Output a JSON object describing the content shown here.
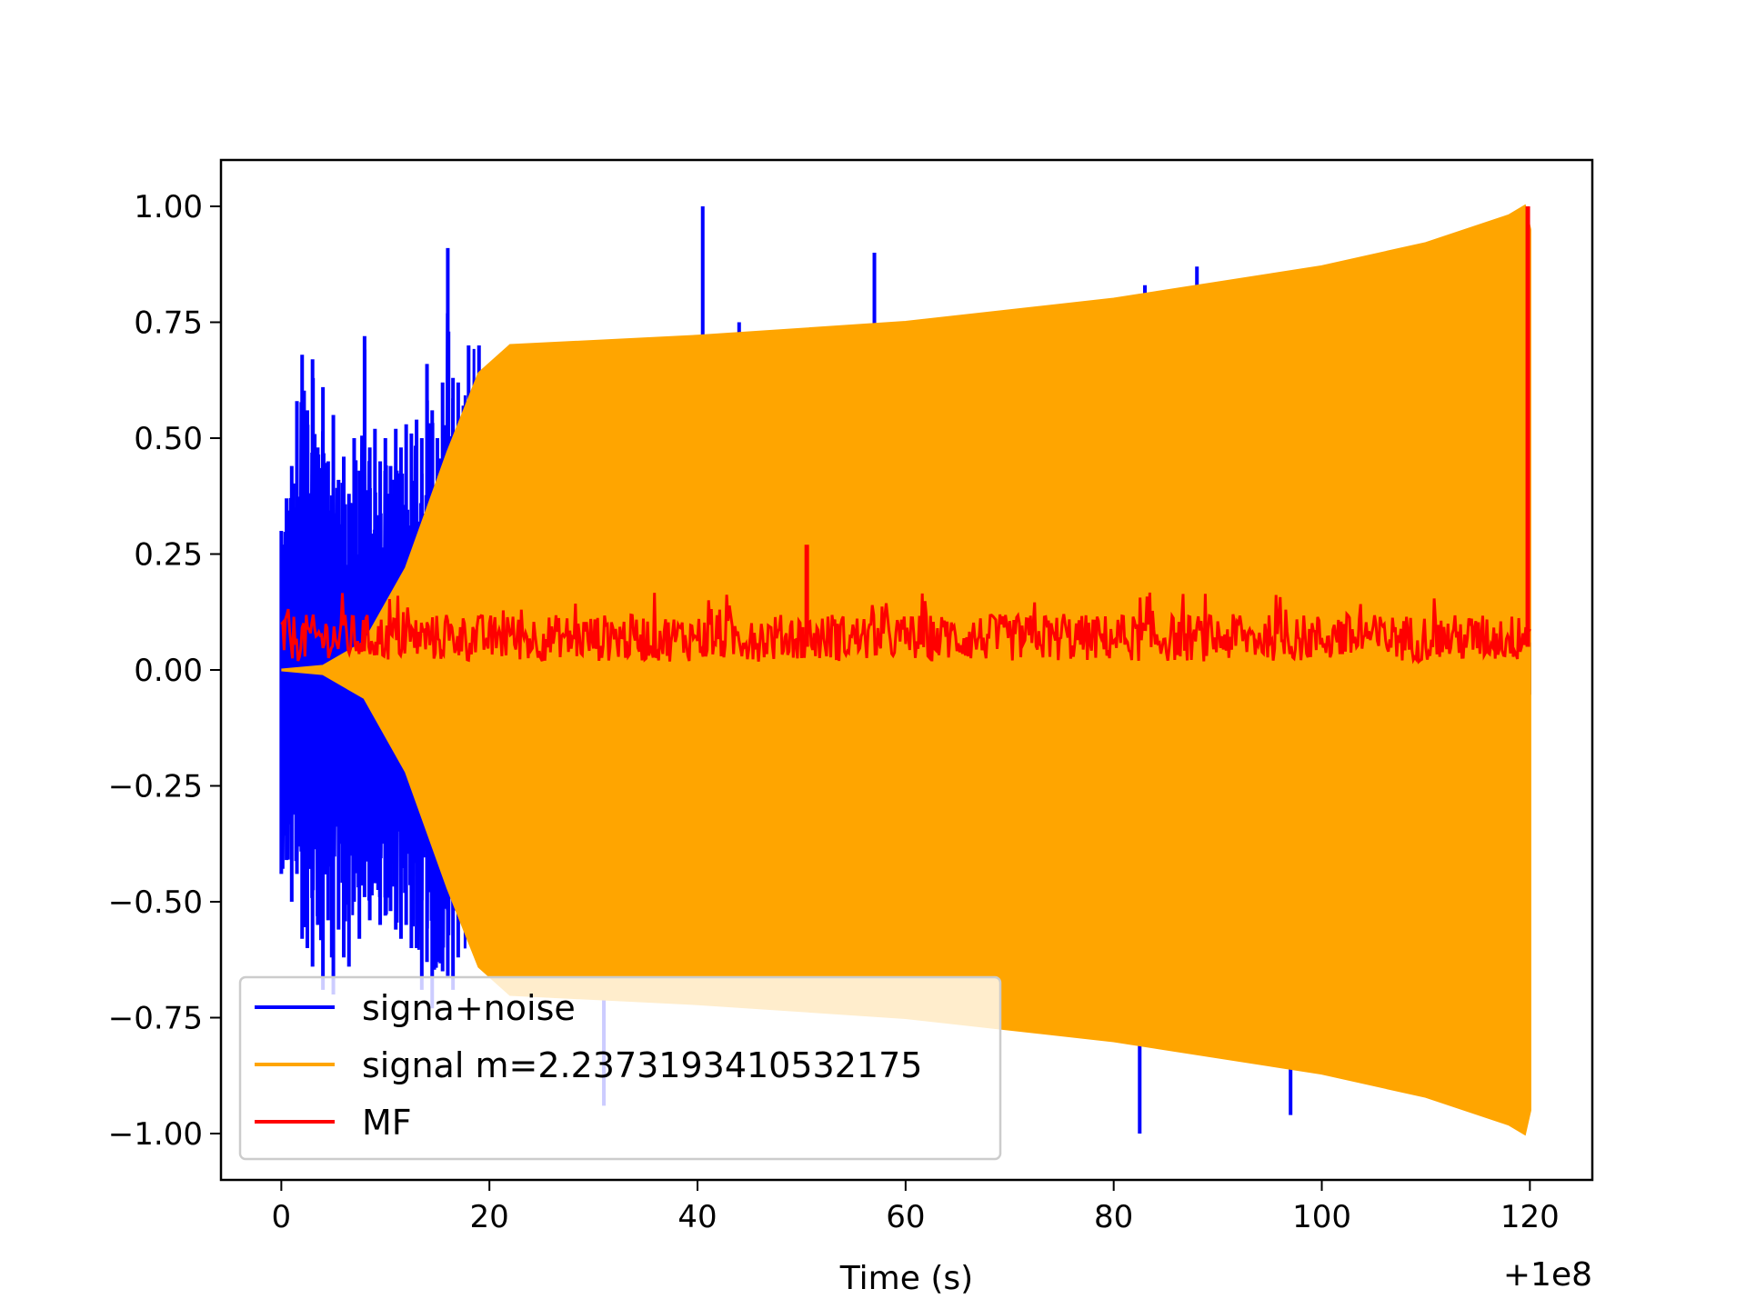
{
  "chart_data": {
    "type": "line",
    "title": "",
    "xlabel": "Time (s)",
    "ylabel": "",
    "x_offset_label": "+1e8",
    "xlim": [
      -5.8,
      126
    ],
    "ylim": [
      -1.1,
      1.1
    ],
    "xticks": [
      0,
      20,
      40,
      60,
      80,
      100,
      120
    ],
    "xtick_labels": [
      "0",
      "20",
      "40",
      "60",
      "80",
      "100",
      "120"
    ],
    "yticks": [
      1.0,
      0.75,
      0.5,
      0.25,
      0.0,
      -0.25,
      -0.5,
      -0.75,
      -1.0
    ],
    "ytick_labels": [
      "1.00",
      "0.75",
      "0.50",
      "0.25",
      "0.00",
      "−0.25",
      "−0.50",
      "−0.75",
      "−1.00"
    ],
    "grid": false,
    "legend_position": "lower-left",
    "series": [
      {
        "name": "signa+noise",
        "color": "#0000ff",
        "style": "noise-burst",
        "x_start": 0,
        "x_end": 120,
        "upper_spikes": [
          [
            0,
            0.3
          ],
          [
            0.5,
            0.37
          ],
          [
            1,
            0.44
          ],
          [
            1.5,
            0.58
          ],
          [
            2,
            0.68
          ],
          [
            2.5,
            0.56
          ],
          [
            3,
            0.67
          ],
          [
            3.5,
            0.48
          ],
          [
            4,
            0.61
          ],
          [
            4.5,
            0.45
          ],
          [
            5,
            0.55
          ],
          [
            5.5,
            0.41
          ],
          [
            6,
            0.46
          ],
          [
            6.5,
            0.38
          ],
          [
            7,
            0.5
          ],
          [
            7.5,
            0.43
          ],
          [
            8,
            0.72
          ],
          [
            8.5,
            0.48
          ],
          [
            9,
            0.52
          ],
          [
            9.5,
            0.45
          ],
          [
            10,
            0.5
          ],
          [
            10.5,
            0.44
          ],
          [
            11,
            0.52
          ],
          [
            11.5,
            0.48
          ],
          [
            12,
            0.53
          ],
          [
            12.5,
            0.51
          ],
          [
            13,
            0.54
          ],
          [
            13.5,
            0.5
          ],
          [
            14,
            0.66
          ],
          [
            14.5,
            0.56
          ],
          [
            15,
            0.5
          ],
          [
            15.5,
            0.62
          ],
          [
            16,
            0.91
          ],
          [
            16.5,
            0.63
          ],
          [
            17,
            0.62
          ],
          [
            17.5,
            0.57
          ],
          [
            18,
            0.7
          ],
          [
            19,
            0.7
          ],
          [
            40.5,
            1.0
          ],
          [
            44,
            0.75
          ],
          [
            57,
            0.9
          ],
          [
            83,
            0.83
          ],
          [
            88,
            0.87
          ]
        ],
        "lower_spikes": [
          [
            0,
            -0.44
          ],
          [
            0.5,
            -0.41
          ],
          [
            1,
            -0.5
          ],
          [
            1.5,
            -0.44
          ],
          [
            2,
            -0.58
          ],
          [
            2.5,
            -0.6
          ],
          [
            3,
            -0.64
          ],
          [
            3.5,
            -0.55
          ],
          [
            4,
            -0.69
          ],
          [
            4.5,
            -0.54
          ],
          [
            5,
            -0.7
          ],
          [
            5.5,
            -0.56
          ],
          [
            6,
            -0.62
          ],
          [
            6.5,
            -0.64
          ],
          [
            7,
            -0.5
          ],
          [
            7.5,
            -0.58
          ],
          [
            8,
            -0.49
          ],
          [
            8.5,
            -0.54
          ],
          [
            9,
            -0.46
          ],
          [
            9.5,
            -0.55
          ],
          [
            10,
            -0.53
          ],
          [
            10.5,
            -0.52
          ],
          [
            11,
            -0.56
          ],
          [
            11.5,
            -0.58
          ],
          [
            12,
            -0.55
          ],
          [
            12.5,
            -0.6
          ],
          [
            13,
            -0.6
          ],
          [
            13.5,
            -0.69
          ],
          [
            14,
            -0.63
          ],
          [
            14.5,
            -0.73
          ],
          [
            15,
            -0.63
          ],
          [
            15.5,
            -0.65
          ],
          [
            16,
            -0.66
          ],
          [
            16.5,
            -0.69
          ],
          [
            17,
            -0.62
          ],
          [
            31,
            -0.94
          ],
          [
            82.5,
            -1.0
          ],
          [
            97,
            -0.96
          ]
        ]
      },
      {
        "name": "signal m=2.2373193410532175",
        "color": "#ffa500",
        "style": "envelope",
        "envelope_upper": [
          [
            0,
            0.0
          ],
          [
            4,
            0.008
          ],
          [
            8,
            0.06
          ],
          [
            12,
            0.22
          ],
          [
            16,
            0.47
          ],
          [
            19,
            0.64
          ],
          [
            22,
            0.7
          ],
          [
            40,
            0.72
          ],
          [
            60,
            0.75
          ],
          [
            80,
            0.8
          ],
          [
            100,
            0.87
          ],
          [
            110,
            0.92
          ],
          [
            118,
            0.98
          ],
          [
            119.5,
            1.0
          ],
          [
            120,
            0.95
          ]
        ],
        "envelope_lower": [
          [
            0,
            0.0
          ],
          [
            4,
            -0.008
          ],
          [
            8,
            -0.06
          ],
          [
            12,
            -0.22
          ],
          [
            16,
            -0.47
          ],
          [
            19,
            -0.64
          ],
          [
            22,
            -0.7
          ],
          [
            40,
            -0.72
          ],
          [
            60,
            -0.75
          ],
          [
            80,
            -0.8
          ],
          [
            100,
            -0.87
          ],
          [
            110,
            -0.92
          ],
          [
            118,
            -0.98
          ],
          [
            119.5,
            -1.0
          ],
          [
            120,
            -0.95
          ]
        ]
      },
      {
        "name": "MF",
        "color": "#ff0000",
        "style": "noise-band",
        "x_start": 0,
        "x_end": 120,
        "band": [
          0.0,
          0.12
        ],
        "spikes": [
          [
            50.5,
            0.27
          ],
          [
            119.8,
            1.0
          ]
        ]
      }
    ]
  }
}
